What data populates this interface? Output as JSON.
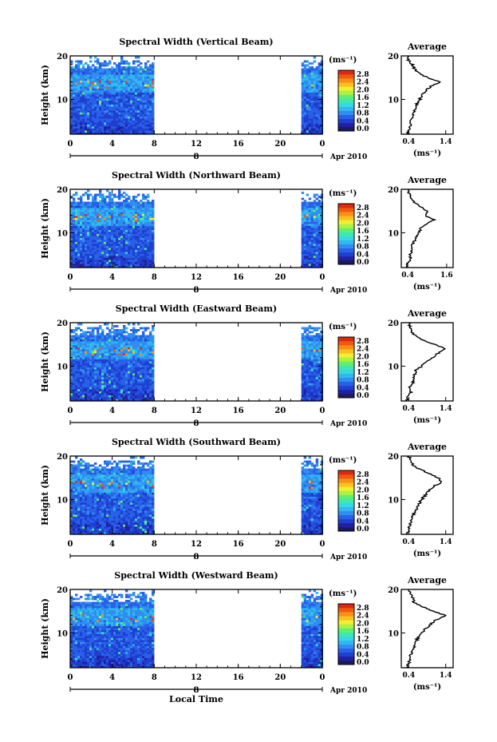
{
  "figure": {
    "date_label": "Apr 2010",
    "day_label": "8",
    "xlabel": "Local Time",
    "height_label": "Height (km)",
    "unit_label": "(ms⁻¹)",
    "avg_unit_label": "(ms⁻¹)",
    "avg_title": "Average"
  },
  "colorbar": {
    "ticks": [
      "2.8",
      "2.4",
      "2.0",
      "1.6",
      "1.2",
      "0.8",
      "0.4",
      "0.0"
    ],
    "colors": [
      "#1a1a60",
      "#2020a0",
      "#1f3fd0",
      "#2860e8",
      "#2f8ef0",
      "#30b8f0",
      "#38d8e0",
      "#40e8b0",
      "#60f070",
      "#b0f040",
      "#f0f030",
      "#f8c020",
      "#f89018",
      "#f05a10",
      "#e02810"
    ]
  },
  "chart_data": [
    {
      "type": "heatmap",
      "title": "Spectral Width (Vertical Beam)",
      "xlabel": "Local Time",
      "ylabel": "Height (km)",
      "x_ticks": [
        "0",
        "4",
        "8",
        "12",
        "16",
        "20",
        "0"
      ],
      "y_ticks": [
        "20",
        "10"
      ],
      "xlim": [
        0,
        24
      ],
      "ylim": [
        2,
        20
      ],
      "data_coverage_hours": [
        [
          0,
          7.8
        ],
        [
          22,
          24
        ]
      ],
      "colorbar_ticks": [
        2.8,
        2.4,
        2.0,
        1.6,
        1.2,
        0.8,
        0.4,
        0.0
      ],
      "average_profile": {
        "title": "Average",
        "xlabel": "(ms⁻¹)",
        "x_ticks": [
          "0.4",
          "1.4"
        ],
        "y_ticks": [
          "20",
          "10"
        ],
        "xlim": [
          0.2,
          1.6
        ],
        "height": [
          2,
          3,
          4,
          5,
          6,
          7,
          8,
          9,
          10,
          11,
          12,
          13,
          14,
          15,
          16,
          17,
          18,
          19,
          20
        ],
        "values": [
          0.35,
          0.4,
          0.45,
          0.42,
          0.5,
          0.55,
          0.6,
          0.62,
          0.7,
          0.75,
          0.85,
          1.0,
          1.25,
          0.9,
          0.7,
          0.55,
          0.5,
          0.4,
          0.4
        ]
      }
    },
    {
      "type": "heatmap",
      "title": "Spectral Width (Northward Beam)",
      "xlabel": "Local Time",
      "ylabel": "Height (km)",
      "x_ticks": [
        "0",
        "4",
        "8",
        "12",
        "16",
        "20",
        "0"
      ],
      "y_ticks": [
        "20",
        "10"
      ],
      "xlim": [
        0,
        24
      ],
      "ylim": [
        2,
        20
      ],
      "data_coverage_hours": [
        [
          0,
          7.8
        ],
        [
          22,
          24
        ]
      ],
      "colorbar_ticks": [
        2.8,
        2.4,
        2.0,
        1.6,
        1.2,
        0.8,
        0.4,
        0.0
      ],
      "average_profile": {
        "title": "Average",
        "xlabel": "(ms⁻¹)",
        "x_ticks": [
          "0.4",
          "1.6"
        ],
        "y_ticks": [
          "20",
          "10"
        ],
        "xlim": [
          0.2,
          1.8
        ],
        "height": [
          2,
          3,
          4,
          5,
          6,
          7,
          8,
          9,
          10,
          11,
          12,
          13,
          14,
          15,
          16,
          17,
          18,
          19,
          20
        ],
        "values": [
          0.35,
          0.4,
          0.5,
          0.45,
          0.55,
          0.5,
          0.6,
          0.65,
          0.75,
          0.8,
          0.95,
          1.2,
          0.95,
          1.0,
          0.8,
          0.6,
          0.5,
          0.45,
          0.4
        ]
      }
    },
    {
      "type": "heatmap",
      "title": "Spectral Width (Eastward Beam)",
      "xlabel": "Local Time",
      "ylabel": "Height (km)",
      "x_ticks": [
        "0",
        "4",
        "8",
        "12",
        "16",
        "20",
        "0"
      ],
      "y_ticks": [
        "20",
        "10"
      ],
      "xlim": [
        0,
        24
      ],
      "ylim": [
        2,
        20
      ],
      "data_coverage_hours": [
        [
          0,
          7.8
        ],
        [
          22,
          24
        ]
      ],
      "colorbar_ticks": [
        2.8,
        2.4,
        2.0,
        1.6,
        1.2,
        0.8,
        0.4,
        0.0
      ],
      "average_profile": {
        "title": "Average",
        "xlabel": "(ms⁻¹)",
        "x_ticks": [
          "0.4",
          "1.4"
        ],
        "y_ticks": [
          "20",
          "10"
        ],
        "xlim": [
          0.2,
          1.6
        ],
        "height": [
          2,
          3,
          4,
          5,
          6,
          7,
          8,
          9,
          10,
          11,
          12,
          13,
          14,
          15,
          16,
          17,
          18,
          19,
          20
        ],
        "values": [
          0.35,
          0.38,
          0.45,
          0.42,
          0.5,
          0.55,
          0.55,
          0.6,
          0.75,
          0.85,
          1.05,
          1.2,
          1.4,
          1.1,
          0.8,
          0.6,
          0.45,
          0.45,
          0.4
        ]
      }
    },
    {
      "type": "heatmap",
      "title": "Spectral Width (Southward Beam)",
      "xlabel": "Local Time",
      "ylabel": "Height (km)",
      "x_ticks": [
        "0",
        "4",
        "8",
        "12",
        "16",
        "20",
        "0"
      ],
      "y_ticks": [
        "20",
        "10"
      ],
      "xlim": [
        0,
        24
      ],
      "ylim": [
        2,
        20
      ],
      "data_coverage_hours": [
        [
          0,
          7.8
        ],
        [
          22,
          24
        ]
      ],
      "colorbar_ticks": [
        2.8,
        2.4,
        2.0,
        1.6,
        1.2,
        0.8,
        0.4,
        0.0
      ],
      "average_profile": {
        "title": "Average",
        "xlabel": "(ms⁻¹)",
        "x_ticks": [
          "0.4",
          "1.4"
        ],
        "y_ticks": [
          "20",
          "10"
        ],
        "xlim": [
          0.2,
          1.6
        ],
        "height": [
          2,
          3,
          4,
          5,
          6,
          7,
          8,
          9,
          10,
          11,
          12,
          13,
          14,
          15,
          16,
          17,
          18,
          19,
          20
        ],
        "values": [
          0.35,
          0.4,
          0.42,
          0.45,
          0.5,
          0.55,
          0.62,
          0.68,
          0.75,
          0.85,
          0.95,
          1.05,
          1.3,
          1.2,
          0.95,
          0.7,
          0.5,
          0.45,
          0.4
        ]
      }
    },
    {
      "type": "heatmap",
      "title": "Spectral Width (Westward Beam)",
      "xlabel": "Local Time",
      "ylabel": "Height (km)",
      "x_ticks": [
        "0",
        "4",
        "8",
        "12",
        "16",
        "20",
        "0"
      ],
      "y_ticks": [
        "20",
        "10"
      ],
      "xlim": [
        0,
        24
      ],
      "ylim": [
        2,
        20
      ],
      "data_coverage_hours": [
        [
          0,
          7.8
        ],
        [
          22,
          24
        ]
      ],
      "colorbar_ticks": [
        2.8,
        2.4,
        2.0,
        1.6,
        1.2,
        0.8,
        0.4,
        0.0
      ],
      "average_profile": {
        "title": "Average",
        "xlabel": "(ms⁻¹)",
        "x_ticks": [
          "0.4",
          "1.4"
        ],
        "y_ticks": [
          "20",
          "10"
        ],
        "xlim": [
          0.2,
          1.6
        ],
        "height": [
          2,
          3,
          4,
          5,
          6,
          7,
          8,
          9,
          10,
          11,
          12,
          13,
          14,
          15,
          16,
          17,
          18,
          19,
          20
        ],
        "values": [
          0.35,
          0.4,
          0.42,
          0.45,
          0.5,
          0.55,
          0.6,
          0.65,
          0.75,
          0.85,
          1.0,
          1.15,
          1.4,
          1.05,
          0.8,
          0.55,
          0.5,
          0.45,
          0.4
        ]
      }
    }
  ]
}
